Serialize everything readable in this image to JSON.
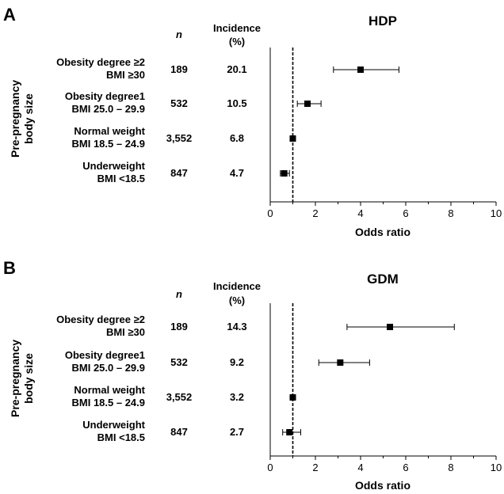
{
  "chart_data": [
    {
      "type": "forest",
      "panel": "A",
      "title": "HDP",
      "xlabel": "Odds ratio",
      "ylabel": [
        "Pre-pregnancy",
        "body size"
      ],
      "n_header": "n",
      "incidence_header": [
        "Incidence",
        "(%)"
      ],
      "xlim": [
        0,
        10
      ],
      "xticks": [
        "0",
        "2",
        "4",
        "6",
        "8",
        "10"
      ],
      "reference_line": 1,
      "rows": [
        {
          "label1": "Obesity degree ≥2",
          "label2": "BMI ≥30",
          "n": "189",
          "incidence": "20.1",
          "or": 4.0,
          "ci_low": 2.8,
          "ci_high": 5.7
        },
        {
          "label1": "Obesity degree1",
          "label2": "BMI 25.0 – 29.9",
          "n": "532",
          "incidence": "10.5",
          "or": 1.65,
          "ci_low": 1.2,
          "ci_high": 2.25
        },
        {
          "label1": "Normal weight",
          "label2": "BMI 18.5 – 24.9",
          "n": "3,552",
          "incidence": "6.8",
          "or": 1.0,
          "ci_low": 1.0,
          "ci_high": 1.0
        },
        {
          "label1": "Underweight",
          "label2": "BMI <18.5",
          "n": "847",
          "incidence": "4.7",
          "or": 0.62,
          "ci_low": 0.45,
          "ci_high": 0.85
        }
      ]
    },
    {
      "type": "forest",
      "panel": "B",
      "title": "GDM",
      "xlabel": "Odds ratio",
      "ylabel": [
        "Pre-pregnancy",
        "body size"
      ],
      "n_header": "n",
      "incidence_header": [
        "Incidence",
        "(%)"
      ],
      "xlim": [
        0,
        10
      ],
      "xticks": [
        "0",
        "2",
        "4",
        "6",
        "8",
        "10"
      ],
      "reference_line": 1,
      "rows": [
        {
          "label1": "Obesity degree ≥2",
          "label2": "BMI ≥30",
          "n": "189",
          "incidence": "14.3",
          "or": 5.3,
          "ci_low": 3.4,
          "ci_high": 8.15
        },
        {
          "label1": "Obesity degree1",
          "label2": "BMI 25.0 – 29.9",
          "n": "532",
          "incidence": "9.2",
          "or": 3.1,
          "ci_low": 2.15,
          "ci_high": 4.4
        },
        {
          "label1": "Normal weight",
          "label2": "BMI 18.5 – 24.9",
          "n": "3,552",
          "incidence": "3.2",
          "or": 1.0,
          "ci_low": 1.0,
          "ci_high": 1.0
        },
        {
          "label1": "Underweight",
          "label2": "BMI <18.5",
          "n": "847",
          "incidence": "2.7",
          "or": 0.85,
          "ci_low": 0.55,
          "ci_high": 1.35
        }
      ]
    }
  ]
}
